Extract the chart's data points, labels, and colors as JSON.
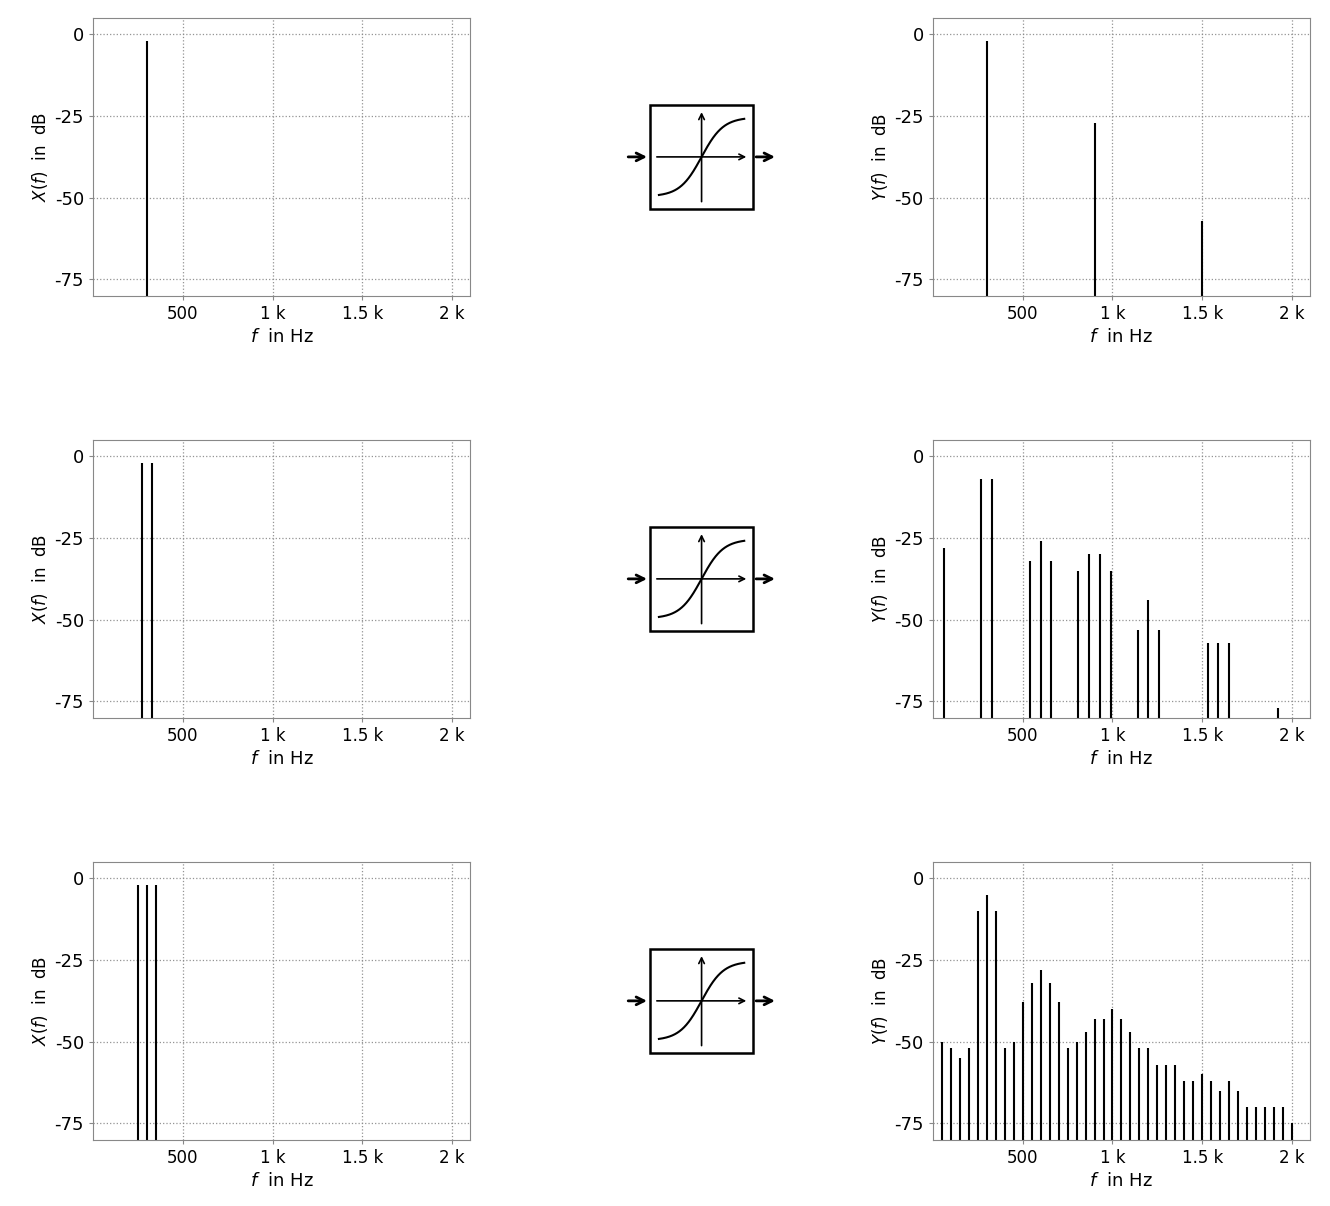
{
  "ylim_bottom": -80,
  "ylim_top": 5,
  "yticks": [
    0,
    -25,
    -50,
    -75
  ],
  "xlim_min": 0,
  "xlim_max": 2100,
  "xticks": [
    500,
    1000,
    1500,
    2000
  ],
  "xticklabels": [
    "500",
    "1 k",
    "1.5 k",
    "2 k"
  ],
  "rows": [
    {
      "input_lines": [
        {
          "f": 300,
          "dB": -2
        }
      ],
      "output_lines": [
        {
          "f": 300,
          "dB": -2
        },
        {
          "f": 900,
          "dB": -27
        },
        {
          "f": 1500,
          "dB": -57
        }
      ]
    },
    {
      "input_lines": [
        {
          "f": 270,
          "dB": -2
        },
        {
          "f": 330,
          "dB": -2
        }
      ],
      "output_lines": [
        {
          "f": 60,
          "dB": -28
        },
        {
          "f": 270,
          "dB": -7
        },
        {
          "f": 330,
          "dB": -7
        },
        {
          "f": 540,
          "dB": -32
        },
        {
          "f": 600,
          "dB": -26
        },
        {
          "f": 660,
          "dB": -32
        },
        {
          "f": 810,
          "dB": -35
        },
        {
          "f": 870,
          "dB": -30
        },
        {
          "f": 930,
          "dB": -30
        },
        {
          "f": 990,
          "dB": -35
        },
        {
          "f": 1140,
          "dB": -53
        },
        {
          "f": 1200,
          "dB": -44
        },
        {
          "f": 1260,
          "dB": -53
        },
        {
          "f": 1530,
          "dB": -57
        },
        {
          "f": 1590,
          "dB": -57
        },
        {
          "f": 1650,
          "dB": -57
        },
        {
          "f": 1920,
          "dB": -77
        }
      ]
    },
    {
      "input_lines": [
        {
          "f": 250,
          "dB": -2
        },
        {
          "f": 300,
          "dB": -2
        },
        {
          "f": 350,
          "dB": -2
        }
      ],
      "output_lines": [
        {
          "f": 50,
          "dB": -50
        },
        {
          "f": 100,
          "dB": -52
        },
        {
          "f": 150,
          "dB": -55
        },
        {
          "f": 200,
          "dB": -52
        },
        {
          "f": 250,
          "dB": -10
        },
        {
          "f": 300,
          "dB": -5
        },
        {
          "f": 350,
          "dB": -10
        },
        {
          "f": 400,
          "dB": -52
        },
        {
          "f": 450,
          "dB": -50
        },
        {
          "f": 500,
          "dB": -38
        },
        {
          "f": 550,
          "dB": -32
        },
        {
          "f": 600,
          "dB": -28
        },
        {
          "f": 650,
          "dB": -32
        },
        {
          "f": 700,
          "dB": -38
        },
        {
          "f": 750,
          "dB": -52
        },
        {
          "f": 800,
          "dB": -50
        },
        {
          "f": 850,
          "dB": -47
        },
        {
          "f": 900,
          "dB": -43
        },
        {
          "f": 950,
          "dB": -43
        },
        {
          "f": 1000,
          "dB": -40
        },
        {
          "f": 1050,
          "dB": -43
        },
        {
          "f": 1100,
          "dB": -47
        },
        {
          "f": 1150,
          "dB": -52
        },
        {
          "f": 1200,
          "dB": -52
        },
        {
          "f": 1250,
          "dB": -57
        },
        {
          "f": 1300,
          "dB": -57
        },
        {
          "f": 1350,
          "dB": -57
        },
        {
          "f": 1400,
          "dB": -62
        },
        {
          "f": 1450,
          "dB": -62
        },
        {
          "f": 1500,
          "dB": -60
        },
        {
          "f": 1550,
          "dB": -62
        },
        {
          "f": 1600,
          "dB": -65
        },
        {
          "f": 1650,
          "dB": -62
        },
        {
          "f": 1700,
          "dB": -65
        },
        {
          "f": 1750,
          "dB": -70
        },
        {
          "f": 1800,
          "dB": -70
        },
        {
          "f": 1850,
          "dB": -70
        },
        {
          "f": 1900,
          "dB": -70
        },
        {
          "f": 1950,
          "dB": -70
        },
        {
          "f": 2000,
          "dB": -75
        }
      ]
    }
  ]
}
